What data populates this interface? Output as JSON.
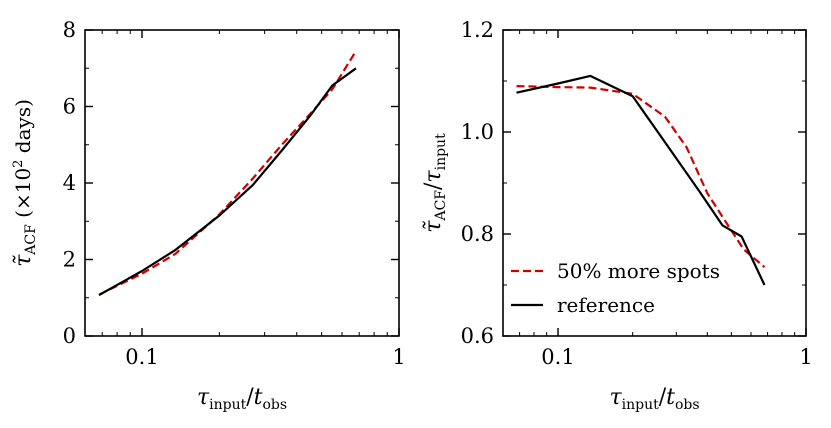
{
  "chart_data": [
    {
      "type": "line",
      "panel": "left",
      "xscale": "log",
      "xlim": [
        0.06,
        1.0
      ],
      "ylim": [
        0,
        8
      ],
      "xticks": [
        {
          "value": 0.1,
          "label": "0.1"
        },
        {
          "value": 1,
          "label": "1"
        }
      ],
      "yticks": [
        {
          "value": 0,
          "label": "0"
        },
        {
          "value": 2,
          "label": "2"
        },
        {
          "value": 4,
          "label": "4"
        },
        {
          "value": 6,
          "label": "6"
        },
        {
          "value": 8,
          "label": "8"
        }
      ],
      "xlabel": {
        "main": "τ",
        "sub1": "input",
        "sep": "/",
        "main2": "t",
        "sub2": "obs"
      },
      "ylabel": {
        "main": "τ̃",
        "sub": "ACF",
        "rest": " (×10",
        "sup": "2",
        "end": " days)"
      },
      "series": [
        {
          "name": "50% more spots",
          "color": "#cc0000",
          "style": "dashed",
          "x": [
            0.068,
            0.1,
            0.135,
            0.2,
            0.27,
            0.35,
            0.45,
            0.55,
            0.68
          ],
          "y": [
            1.08,
            1.63,
            2.15,
            3.18,
            4.12,
            5.0,
            5.8,
            6.45,
            7.45
          ]
        },
        {
          "name": "reference",
          "color": "#000000",
          "style": "solid",
          "x": [
            0.068,
            0.1,
            0.135,
            0.2,
            0.27,
            0.35,
            0.45,
            0.55,
            0.68
          ],
          "y": [
            1.07,
            1.7,
            2.25,
            3.15,
            3.95,
            4.85,
            5.75,
            6.55,
            7.0
          ]
        }
      ]
    },
    {
      "type": "line",
      "panel": "right",
      "xscale": "log",
      "xlim": [
        0.06,
        1.0
      ],
      "ylim": [
        0.6,
        1.2
      ],
      "xticks": [
        {
          "value": 0.1,
          "label": "0.1"
        },
        {
          "value": 1,
          "label": "1"
        }
      ],
      "yticks": [
        {
          "value": 0.6,
          "label": "0.6"
        },
        {
          "value": 0.8,
          "label": "0.8"
        },
        {
          "value": 1.0,
          "label": "1.0"
        },
        {
          "value": 1.2,
          "label": "1.2"
        }
      ],
      "xlabel": {
        "main": "τ",
        "sub1": "input",
        "sep": "/",
        "main2": "t",
        "sub2": "obs"
      },
      "ylabel": {
        "main": "τ̃",
        "sub": "ACF",
        "sep": "/",
        "main2": "τ",
        "sub2": "input"
      },
      "legend": {
        "position": "lower-left",
        "entries": [
          "50% more spots",
          "reference"
        ]
      },
      "series": [
        {
          "name": "50% more spots",
          "color": "#cc0000",
          "style": "dashed",
          "x": [
            0.068,
            0.1,
            0.135,
            0.2,
            0.27,
            0.33,
            0.4,
            0.48,
            0.56,
            0.68
          ],
          "y": [
            1.09,
            1.088,
            1.087,
            1.075,
            1.03,
            0.97,
            0.88,
            0.82,
            0.77,
            0.735
          ]
        },
        {
          "name": "reference",
          "color": "#000000",
          "style": "solid",
          "x": [
            0.068,
            0.1,
            0.135,
            0.2,
            0.27,
            0.37,
            0.46,
            0.55,
            0.68
          ],
          "y": [
            1.077,
            1.095,
            1.11,
            1.07,
            0.98,
            0.885,
            0.817,
            0.795,
            0.7
          ]
        }
      ]
    }
  ]
}
